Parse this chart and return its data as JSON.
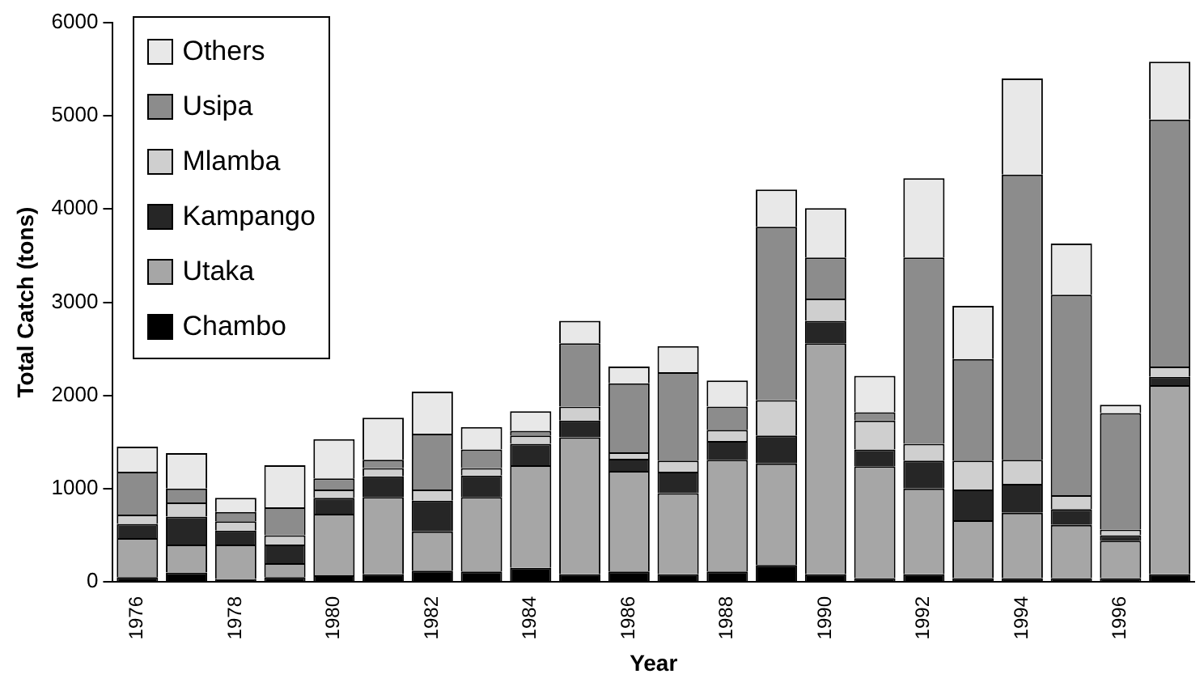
{
  "chart_data": {
    "type": "bar",
    "stacked": true,
    "xlabel": "Year",
    "ylabel": "Total Catch (tons)",
    "categories": [
      "1976",
      null,
      "1978",
      null,
      "1980",
      null,
      "1982",
      null,
      "1984",
      null,
      "1986",
      null,
      "1988",
      null,
      "1990",
      null,
      "1992",
      null,
      "1994",
      null,
      "1996",
      null
    ],
    "series": [
      {
        "name": "Chambo",
        "color": "#000000",
        "values": [
          50,
          100,
          30,
          50,
          70,
          80,
          120,
          110,
          150,
          80,
          110,
          80,
          110,
          180,
          80,
          40,
          80,
          40,
          40,
          40,
          40,
          80
        ]
      },
      {
        "name": "Utaka",
        "color": "#a6a6a6",
        "values": [
          420,
          300,
          370,
          150,
          660,
          830,
          420,
          800,
          1100,
          1470,
          1080,
          870,
          1200,
          1090,
          2480,
          1200,
          920,
          620,
          700,
          570,
          400,
          2030
        ]
      },
      {
        "name": "Kampango",
        "color": "#262626",
        "values": [
          150,
          300,
          150,
          200,
          170,
          220,
          330,
          230,
          230,
          180,
          130,
          230,
          200,
          300,
          240,
          180,
          300,
          330,
          310,
          170,
          60,
          90
        ]
      },
      {
        "name": "Mlamba",
        "color": "#cfcfcf",
        "values": [
          100,
          150,
          100,
          100,
          90,
          90,
          120,
          80,
          90,
          150,
          70,
          120,
          120,
          380,
          240,
          310,
          180,
          310,
          260,
          150,
          60,
          110
        ]
      },
      {
        "name": "Usipa",
        "color": "#8c8c8c",
        "values": [
          460,
          150,
          100,
          300,
          120,
          90,
          600,
          200,
          50,
          680,
          740,
          950,
          250,
          1860,
          440,
          90,
          2000,
          1090,
          3060,
          2150,
          1250,
          2650
        ]
      },
      {
        "name": "Others",
        "color": "#e8e8e8",
        "values": [
          270,
          380,
          150,
          450,
          420,
          450,
          450,
          240,
          210,
          240,
          180,
          280,
          280,
          400,
          530,
          390,
          850,
          570,
          1030,
          550,
          90,
          620
        ]
      }
    ],
    "ylim": [
      0,
      6000
    ],
    "yticks": [
      0,
      1000,
      2000,
      3000,
      4000,
      5000,
      6000
    ],
    "grid": false,
    "legend": "top left"
  }
}
